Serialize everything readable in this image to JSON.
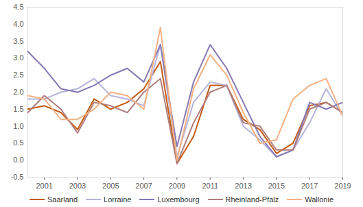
{
  "chart_data": {
    "type": "line",
    "x": [
      2000,
      2001,
      2002,
      2003,
      2004,
      2005,
      2006,
      2007,
      2008,
      2009,
      2010,
      2011,
      2012,
      2013,
      2014,
      2015,
      2016,
      2017,
      2018,
      2019
    ],
    "xlim": [
      2000,
      2019
    ],
    "xticks": [
      2001,
      2003,
      2005,
      2007,
      2009,
      2011,
      2013,
      2015,
      2017,
      2019
    ],
    "ylim": [
      -0.5,
      4.5
    ],
    "yticks": [
      {
        "value": -0.5,
        "label": "-0.5"
      },
      {
        "value": 0,
        "label": "0.0"
      },
      {
        "value": 0.5,
        "label": "0.5"
      },
      {
        "value": 1,
        "label": "1.0"
      },
      {
        "value": 1.5,
        "label": "1.5"
      },
      {
        "value": 2,
        "label": "2.0"
      },
      {
        "value": 2.5,
        "label": "2.5"
      },
      {
        "value": 3,
        "label": "3.0"
      },
      {
        "value": 3.5,
        "label": "3.5"
      },
      {
        "value": 4,
        "label": "4.0"
      },
      {
        "value": 4.5,
        "label": "4.5"
      }
    ],
    "grid": false,
    "legend": "bottom",
    "series": [
      {
        "name": "Saarland",
        "color": "#c55a11",
        "line_style": "solid",
        "values": [
          1.5,
          1.6,
          1.4,
          0.9,
          1.8,
          1.5,
          1.7,
          2.1,
          2.9,
          -0.1,
          0.7,
          2.2,
          2.2,
          1.2,
          0.9,
          0.2,
          0.5,
          1.6,
          1.7,
          1.4
        ]
      },
      {
        "name": "Lorraine",
        "color": "#b4b4dc",
        "line_style": "solid",
        "values": [
          1.8,
          1.8,
          2.0,
          2.1,
          2.4,
          1.9,
          1.8,
          1.6,
          3.4,
          0.1,
          1.7,
          2.3,
          2.2,
          1.0,
          0.6,
          0.1,
          0.3,
          1.1,
          2.1,
          1.3
        ]
      },
      {
        "name": "Luxembourg",
        "color": "#8678b4",
        "line_style": "solid",
        "values": [
          3.2,
          2.7,
          2.1,
          2.0,
          2.2,
          2.5,
          2.7,
          2.3,
          3.4,
          0.4,
          2.3,
          3.4,
          2.7,
          1.7,
          0.7,
          0.1,
          0.3,
          1.7,
          1.5,
          1.7
        ]
      },
      {
        "name": "Rheinland-Pfalz",
        "color": "#b07d7d",
        "line_style": "solid",
        "values": [
          1.4,
          1.9,
          1.5,
          0.8,
          1.7,
          1.6,
          1.4,
          2.0,
          2.4,
          -0.1,
          1.1,
          2.0,
          2.2,
          1.1,
          1.0,
          0.3,
          0.3,
          1.5,
          1.7,
          1.4
        ]
      },
      {
        "name": "Wallonie",
        "color": "#f4b183",
        "line_style": "solid",
        "values": [
          1.9,
          1.8,
          1.2,
          1.2,
          1.5,
          2.0,
          1.9,
          1.5,
          3.9,
          0.0,
          2.1,
          3.1,
          2.5,
          1.4,
          0.5,
          0.6,
          1.8,
          2.2,
          2.4,
          1.3
        ]
      }
    ]
  }
}
